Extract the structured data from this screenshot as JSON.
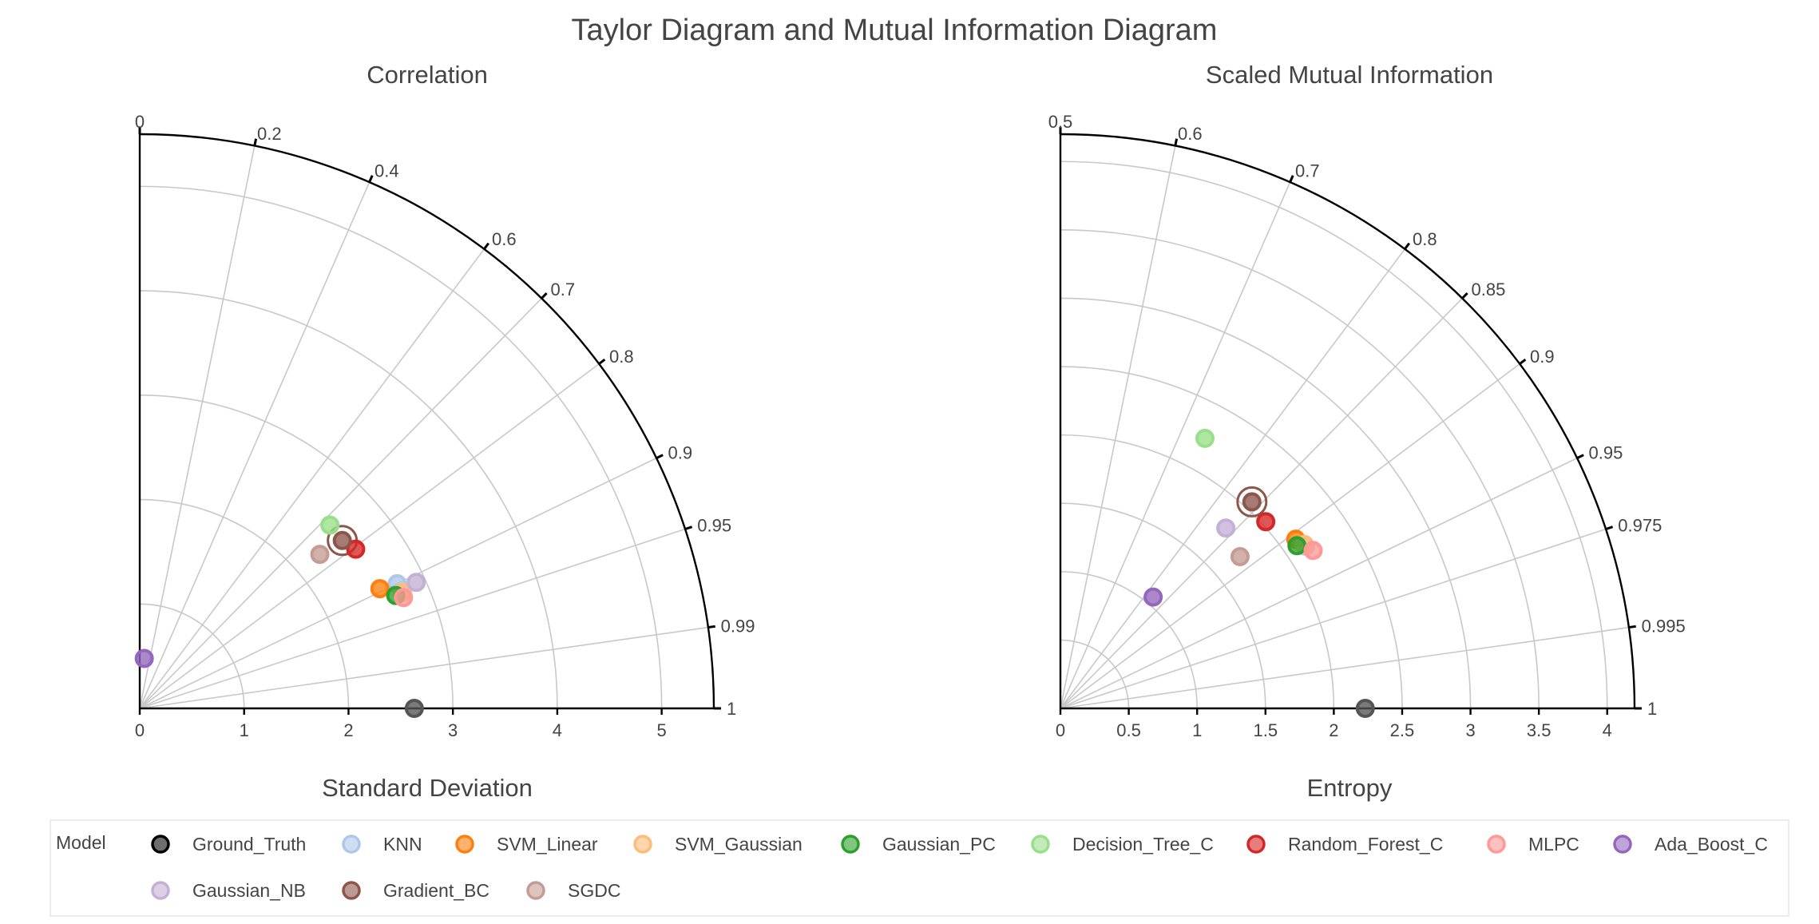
{
  "chart_data": {
    "title": "Taylor Diagram and Mutual Information Diagram",
    "legend": {
      "title": "Model",
      "placement": "bottom"
    },
    "colors": {
      "Ground_Truth": "#555555",
      "KNN": "#aec7e8",
      "SVM_Linear": "#ff7f0e",
      "SVM_Gaussian": "#ffbb78",
      "Gaussian_PC": "#2ca02c",
      "Decision_Tree_C": "#98df8a",
      "Random_Forest_C": "#d62728",
      "MLPC": "#ff9896",
      "Ada_Boost_C": "#9467bd",
      "Gaussian_NB": "#c5b0d5",
      "Gradient_BC": "#8c564b",
      "SGDC": "#c49c94"
    },
    "models": [
      "Ground_Truth",
      "KNN",
      "SVM_Linear",
      "SVM_Gaussian",
      "Gaussian_PC",
      "Decision_Tree_C",
      "Random_Forest_C",
      "MLPC",
      "Ada_Boost_C",
      "Gaussian_NB",
      "Gradient_BC",
      "SGDC"
    ],
    "charts": [
      {
        "type": "scatter",
        "subtitle": "Correlation",
        "xlabel": "Standard Deviation",
        "rmax": 5.5,
        "radial_ticks": [
          0,
          1,
          2,
          3,
          4,
          5
        ],
        "angle_tick_labels": [
          "0",
          "0.2",
          "0.4",
          "0.6",
          "0.7",
          "0.8",
          "0.9",
          "0.95",
          "0.99",
          "1"
        ],
        "angle_tick_values": [
          0,
          0.2,
          0.4,
          0.6,
          0.7,
          0.8,
          0.9,
          0.95,
          0.99,
          1.0
        ],
        "grid": true,
        "highlight": "Gradient_BC",
        "points": [
          {
            "model": "Ground_Truth",
            "r": 2.63,
            "angle": 1.0
          },
          {
            "model": "KNN",
            "r": 2.74,
            "angle": 0.9
          },
          {
            "model": "SVM_Linear",
            "r": 2.57,
            "angle": 0.895
          },
          {
            "model": "SVM_Gaussian",
            "r": 2.75,
            "angle": 0.915
          },
          {
            "model": "Gaussian_PC",
            "r": 2.68,
            "angle": 0.915
          },
          {
            "model": "Decision_Tree_C",
            "r": 2.53,
            "angle": 0.72
          },
          {
            "model": "Random_Forest_C",
            "r": 2.57,
            "angle": 0.805
          },
          {
            "model": "MLPC",
            "r": 2.74,
            "angle": 0.922
          },
          {
            "model": "Ada_Boost_C",
            "r": 0.48,
            "angle": 0.09
          },
          {
            "model": "Gaussian_NB",
            "r": 2.91,
            "angle": 0.91
          },
          {
            "model": "Gradient_BC",
            "r": 2.52,
            "angle": 0.77
          },
          {
            "model": "SGDC",
            "r": 2.27,
            "angle": 0.76
          }
        ]
      },
      {
        "type": "scatter",
        "subtitle": "Scaled Mutual Information",
        "xlabel": "Entropy",
        "rmax": 4.2,
        "radial_ticks": [
          0,
          0.5,
          1,
          1.5,
          2,
          2.5,
          3,
          3.5,
          4
        ],
        "angle_tick_labels": [
          "0.5",
          "0.6",
          "0.7",
          "0.8",
          "0.85",
          "0.9",
          "0.95",
          "0.975",
          "0.995",
          "1"
        ],
        "angle_tick_values": [
          0.5,
          0.6,
          0.7,
          0.8,
          0.85,
          0.9,
          0.95,
          0.975,
          0.995,
          1.0
        ],
        "grid": true,
        "highlight": "Gradient_BC",
        "points": [
          {
            "model": "Ground_Truth",
            "r": 2.23,
            "angle": 1.0
          },
          {
            "model": "KNN",
            "r": 2.15,
            "angle": 0.917
          },
          {
            "model": "SVM_Linear",
            "r": 2.12,
            "angle": 0.906
          },
          {
            "model": "SVM_Gaussian",
            "r": 2.15,
            "angle": 0.915
          },
          {
            "model": "Gaussian_PC",
            "r": 2.1,
            "angle": 0.912
          },
          {
            "model": "Decision_Tree_C",
            "r": 2.24,
            "angle": 0.736
          },
          {
            "model": "Random_Forest_C",
            "r": 2.03,
            "angle": 0.87
          },
          {
            "model": "MLPC",
            "r": 2.18,
            "angle": 0.924
          },
          {
            "model": "Ada_Boost_C",
            "r": 1.06,
            "angle": 0.82
          },
          {
            "model": "Gaussian_NB",
            "r": 1.79,
            "angle": 0.838
          },
          {
            "model": "Gradient_BC",
            "r": 2.06,
            "angle": 0.84
          },
          {
            "model": "SGDC",
            "r": 1.72,
            "angle": 0.882
          }
        ]
      }
    ]
  }
}
